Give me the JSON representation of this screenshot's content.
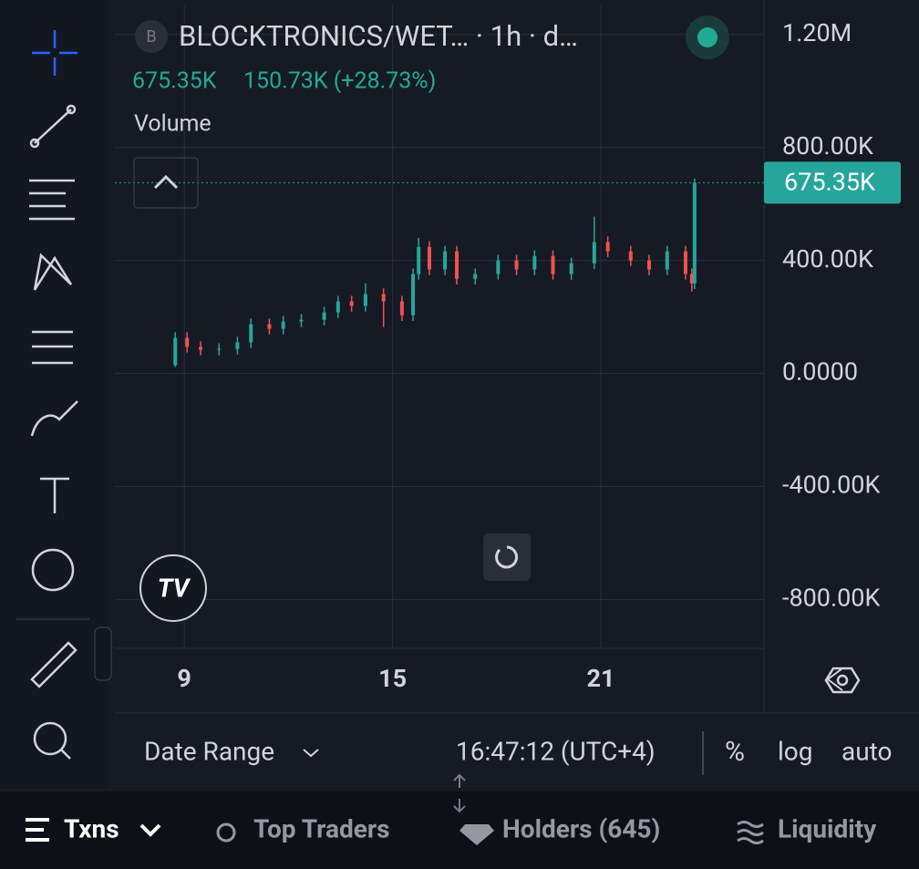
{
  "header": {
    "badge": "B",
    "symbol": "BLOCKTRONICS/WET… · 1h · d…",
    "change": "150.73K (+28.73%)",
    "study": "Volume"
  },
  "chart_data": {
    "type": "candlestick",
    "x": [
      8.74,
      9.08,
      9.47,
      10.0,
      10.53,
      10.92,
      11.45,
      11.85,
      12.37,
      13.03,
      13.43,
      13.82,
      14.22,
      14.74,
      15.27,
      15.59,
      15.75,
      16.06,
      16.51,
      16.85,
      17.38,
      18.04,
      18.57,
      19.09,
      19.62,
      20.15,
      20.81,
      21.2,
      21.86,
      22.39,
      22.91,
      23.44,
      23.62,
      23.7
    ],
    "open": [
      29000,
      126000,
      94000,
      84000,
      87000,
      110000,
      174000,
      158000,
      184000,
      190000,
      216000,
      255000,
      239000,
      281000,
      255000,
      206000,
      352000,
      448000,
      368000,
      432000,
      335000,
      352000,
      400000,
      368000,
      416000,
      352000,
      390000,
      465000,
      432000,
      400000,
      368000,
      432000,
      352000,
      319000
    ],
    "high": [
      146000,
      146000,
      114000,
      107000,
      130000,
      194000,
      194000,
      204000,
      210000,
      236000,
      275000,
      275000,
      319000,
      301000,
      275000,
      372000,
      480000,
      468000,
      452000,
      452000,
      372000,
      420000,
      420000,
      436000,
      436000,
      410000,
      555000,
      485000,
      452000,
      420000,
      452000,
      452000,
      372000,
      690000
    ],
    "low": [
      23000,
      74000,
      64000,
      64000,
      67000,
      90000,
      138000,
      138000,
      164000,
      170000,
      196000,
      219000,
      219000,
      164000,
      186000,
      186000,
      332000,
      348000,
      348000,
      315000,
      315000,
      332000,
      348000,
      348000,
      332000,
      332000,
      370000,
      412000,
      380000,
      348000,
      348000,
      332000,
      290000,
      299000
    ],
    "close": [
      126000,
      94000,
      84000,
      87000,
      110000,
      174000,
      158000,
      184000,
      190000,
      216000,
      255000,
      239000,
      281000,
      255000,
      206000,
      352000,
      448000,
      368000,
      432000,
      335000,
      352000,
      400000,
      368000,
      416000,
      352000,
      390000,
      465000,
      432000,
      400000,
      368000,
      432000,
      352000,
      319000,
      675350
    ],
    "up_color": "#26a69a",
    "down_color": "#ef5350",
    "xlim": [
      7.0,
      25.7
    ],
    "xticks": [
      9,
      15,
      21
    ],
    "ylim": [
      -970000,
      1306000
    ],
    "yticks": [
      {
        "value": 1200000,
        "label": "1.20M"
      },
      {
        "value": 800000,
        "label": "800.00K"
      },
      {
        "value": 400000,
        "label": "400.00K"
      },
      {
        "value": 0,
        "label": "0.0000"
      },
      {
        "value": -400000,
        "label": "-400.00K"
      },
      {
        "value": -800000,
        "label": "-800.00K"
      }
    ],
    "last_price": {
      "value": 675350,
      "label": "675.35K"
    },
    "grid": true
  },
  "footer": {
    "date_range": "Date Range",
    "clock": "16:47:12 (UTC+4)",
    "percent": "%",
    "log": "log",
    "auto": "auto"
  },
  "tabs": [
    "Txns",
    "Top Traders",
    "Holders (645)",
    "Liquidity"
  ]
}
